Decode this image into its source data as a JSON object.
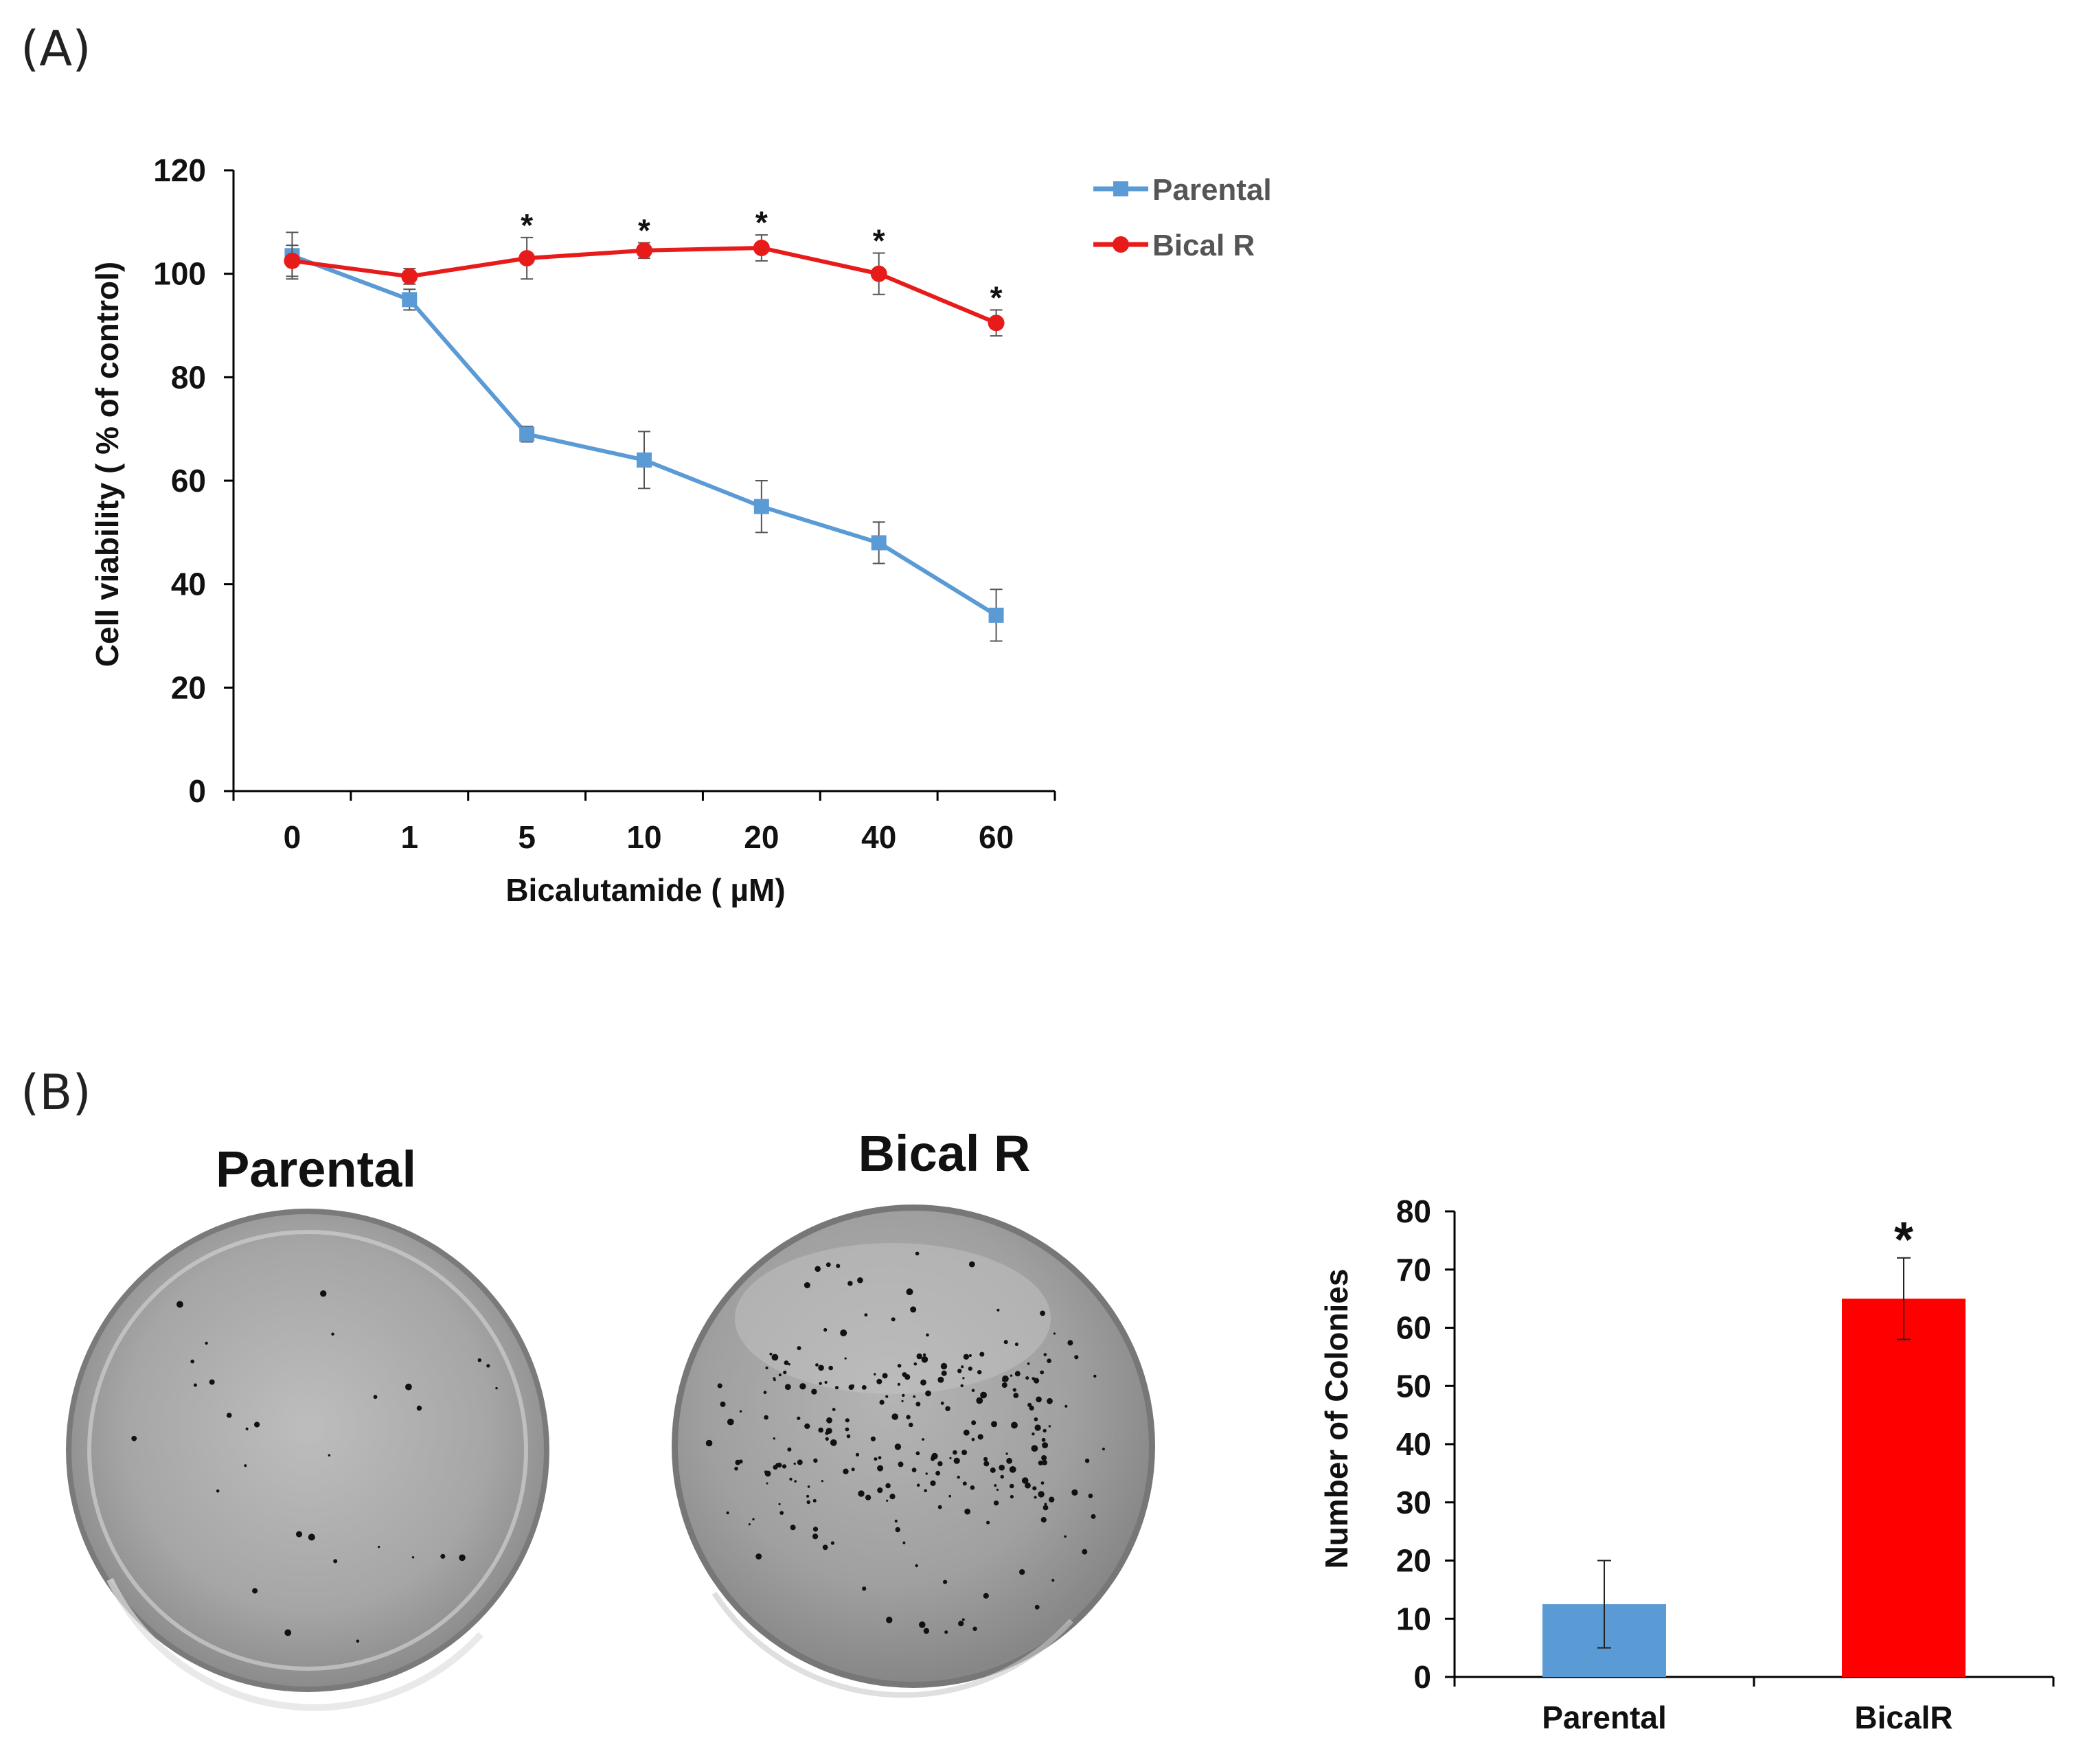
{
  "panel_a": {
    "label": "(A)",
    "legend": [
      {
        "name": "Parental",
        "color": "#5B9BD5",
        "marker": "square"
      },
      {
        "name": "Bical R",
        "color": "#E81B1B",
        "marker": "circle"
      }
    ]
  },
  "panel_b": {
    "label": "(B)",
    "plates": [
      {
        "title": "Parental"
      },
      {
        "title": "Bical R"
      }
    ]
  },
  "chart_data": [
    {
      "type": "line",
      "title": "",
      "xlabel": "Bicalutamide ( µM)",
      "ylabel": "Cell viability ( % of control)",
      "categories": [
        "0",
        "1",
        "5",
        "10",
        "20",
        "40",
        "60"
      ],
      "ylim": [
        0,
        120
      ],
      "yticks": [
        0,
        20,
        40,
        60,
        80,
        100,
        120
      ],
      "grid": false,
      "legend": "top-right",
      "series": [
        {
          "name": "Parental",
          "color": "#5B9BD5",
          "values": [
            103.5,
            95,
            69,
            64,
            55,
            48,
            34
          ],
          "errors": [
            4.5,
            2,
            1.5,
            5.5,
            5,
            4,
            5
          ]
        },
        {
          "name": "Bical R",
          "color": "#E81B1B",
          "values": [
            102.5,
            99.5,
            103,
            104.5,
            105,
            100,
            90.5
          ],
          "errors": [
            3,
            1.5,
            4,
            1.5,
            2.5,
            4,
            2.5
          ]
        }
      ],
      "annotations": [
        {
          "text": "*",
          "category": "5"
        },
        {
          "text": "*",
          "category": "10"
        },
        {
          "text": "*",
          "category": "20"
        },
        {
          "text": "*",
          "category": "40"
        },
        {
          "text": "*",
          "category": "60"
        }
      ]
    },
    {
      "type": "bar",
      "title": "",
      "xlabel": "",
      "ylabel": "Number of Colonies",
      "categories": [
        "Parental",
        "BicalR"
      ],
      "values": [
        12.5,
        65
      ],
      "errors": [
        7.5,
        7
      ],
      "colors": [
        "#5B9BD5",
        "#FF0000"
      ],
      "ylim": [
        0,
        80
      ],
      "yticks": [
        0,
        10,
        20,
        30,
        40,
        50,
        60,
        70,
        80
      ],
      "grid": false,
      "annotations": [
        {
          "text": "*",
          "category": "BicalR"
        }
      ]
    }
  ]
}
